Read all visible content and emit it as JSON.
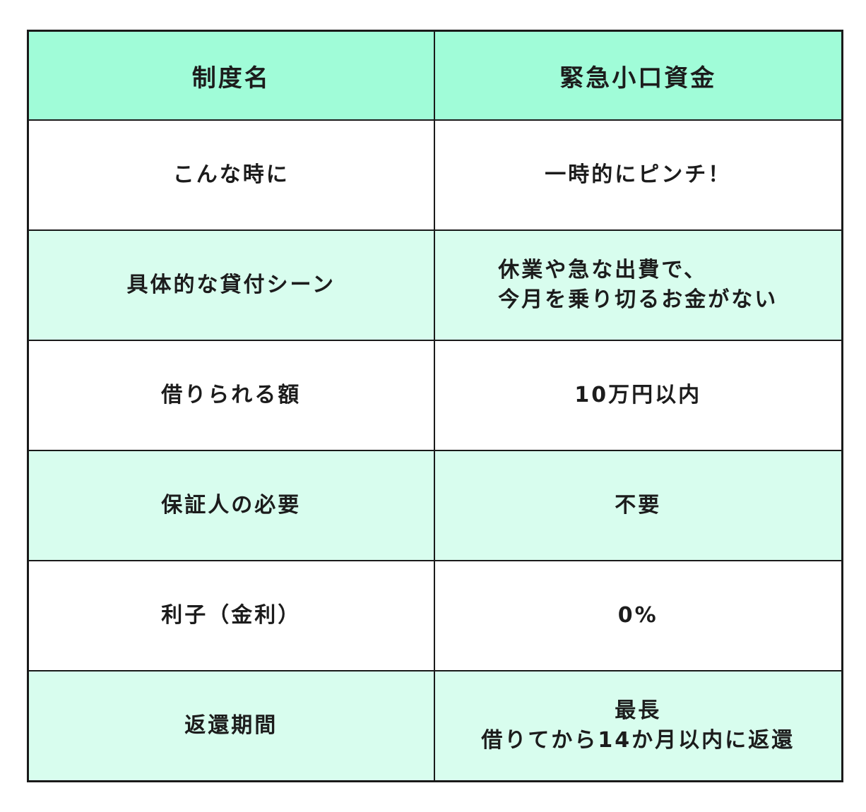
{
  "colors": {
    "header_bg": "#a0fcd8",
    "alt_row_bg": "#d8fdee",
    "border": "#1a1a1a"
  },
  "header": {
    "col1": "制度名",
    "col2": "緊急小口資金"
  },
  "rows": [
    {
      "label": "こんな時に",
      "value": [
        "一時的にピンチ！"
      ]
    },
    {
      "label": "具体的な貸付シーン",
      "value": [
        "休業や急な出費で、",
        "今月を乗り切るお金がない"
      ]
    },
    {
      "label": "借りられる額",
      "value": [
        "10万円以内"
      ]
    },
    {
      "label": "保証人の必要",
      "value": [
        "不要"
      ]
    },
    {
      "label": "利子（金利）",
      "value": [
        "0%"
      ]
    },
    {
      "label": "返還期間",
      "value": [
        "最長",
        "借りてから14か月以内に返還"
      ]
    }
  ]
}
